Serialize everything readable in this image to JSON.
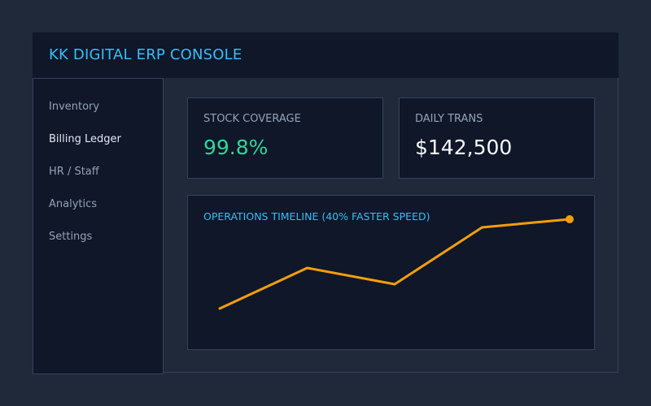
{
  "app": {
    "title": "KK DIGITAL ERP CONSOLE"
  },
  "sidebar": {
    "items": [
      {
        "label": "Inventory",
        "active": false
      },
      {
        "label": "Billing Ledger",
        "active": true
      },
      {
        "label": "HR / Staff",
        "active": false
      },
      {
        "label": "Analytics",
        "active": false
      },
      {
        "label": "Settings",
        "active": false
      }
    ]
  },
  "cards": {
    "stock": {
      "label": "STOCK COVERAGE",
      "value": "99.8%",
      "color": "#34d399"
    },
    "daily": {
      "label": "DAILY TRANS",
      "value": "$142,500",
      "color": "#f8fafc"
    }
  },
  "chart": {
    "title": "OPERATIONS TIMELINE (40% FASTER SPEED)"
  },
  "chart_data": {
    "type": "line",
    "title": "OPERATIONS TIMELINE (40% FASTER SPEED)",
    "x": [
      1,
      2,
      3,
      4,
      5
    ],
    "series": [
      {
        "values": [
          0,
          50,
          30,
          100,
          110
        ],
        "color": "#f59e0b"
      }
    ],
    "ylim": [
      0,
      110
    ],
    "grid": false,
    "end_marker": true
  }
}
